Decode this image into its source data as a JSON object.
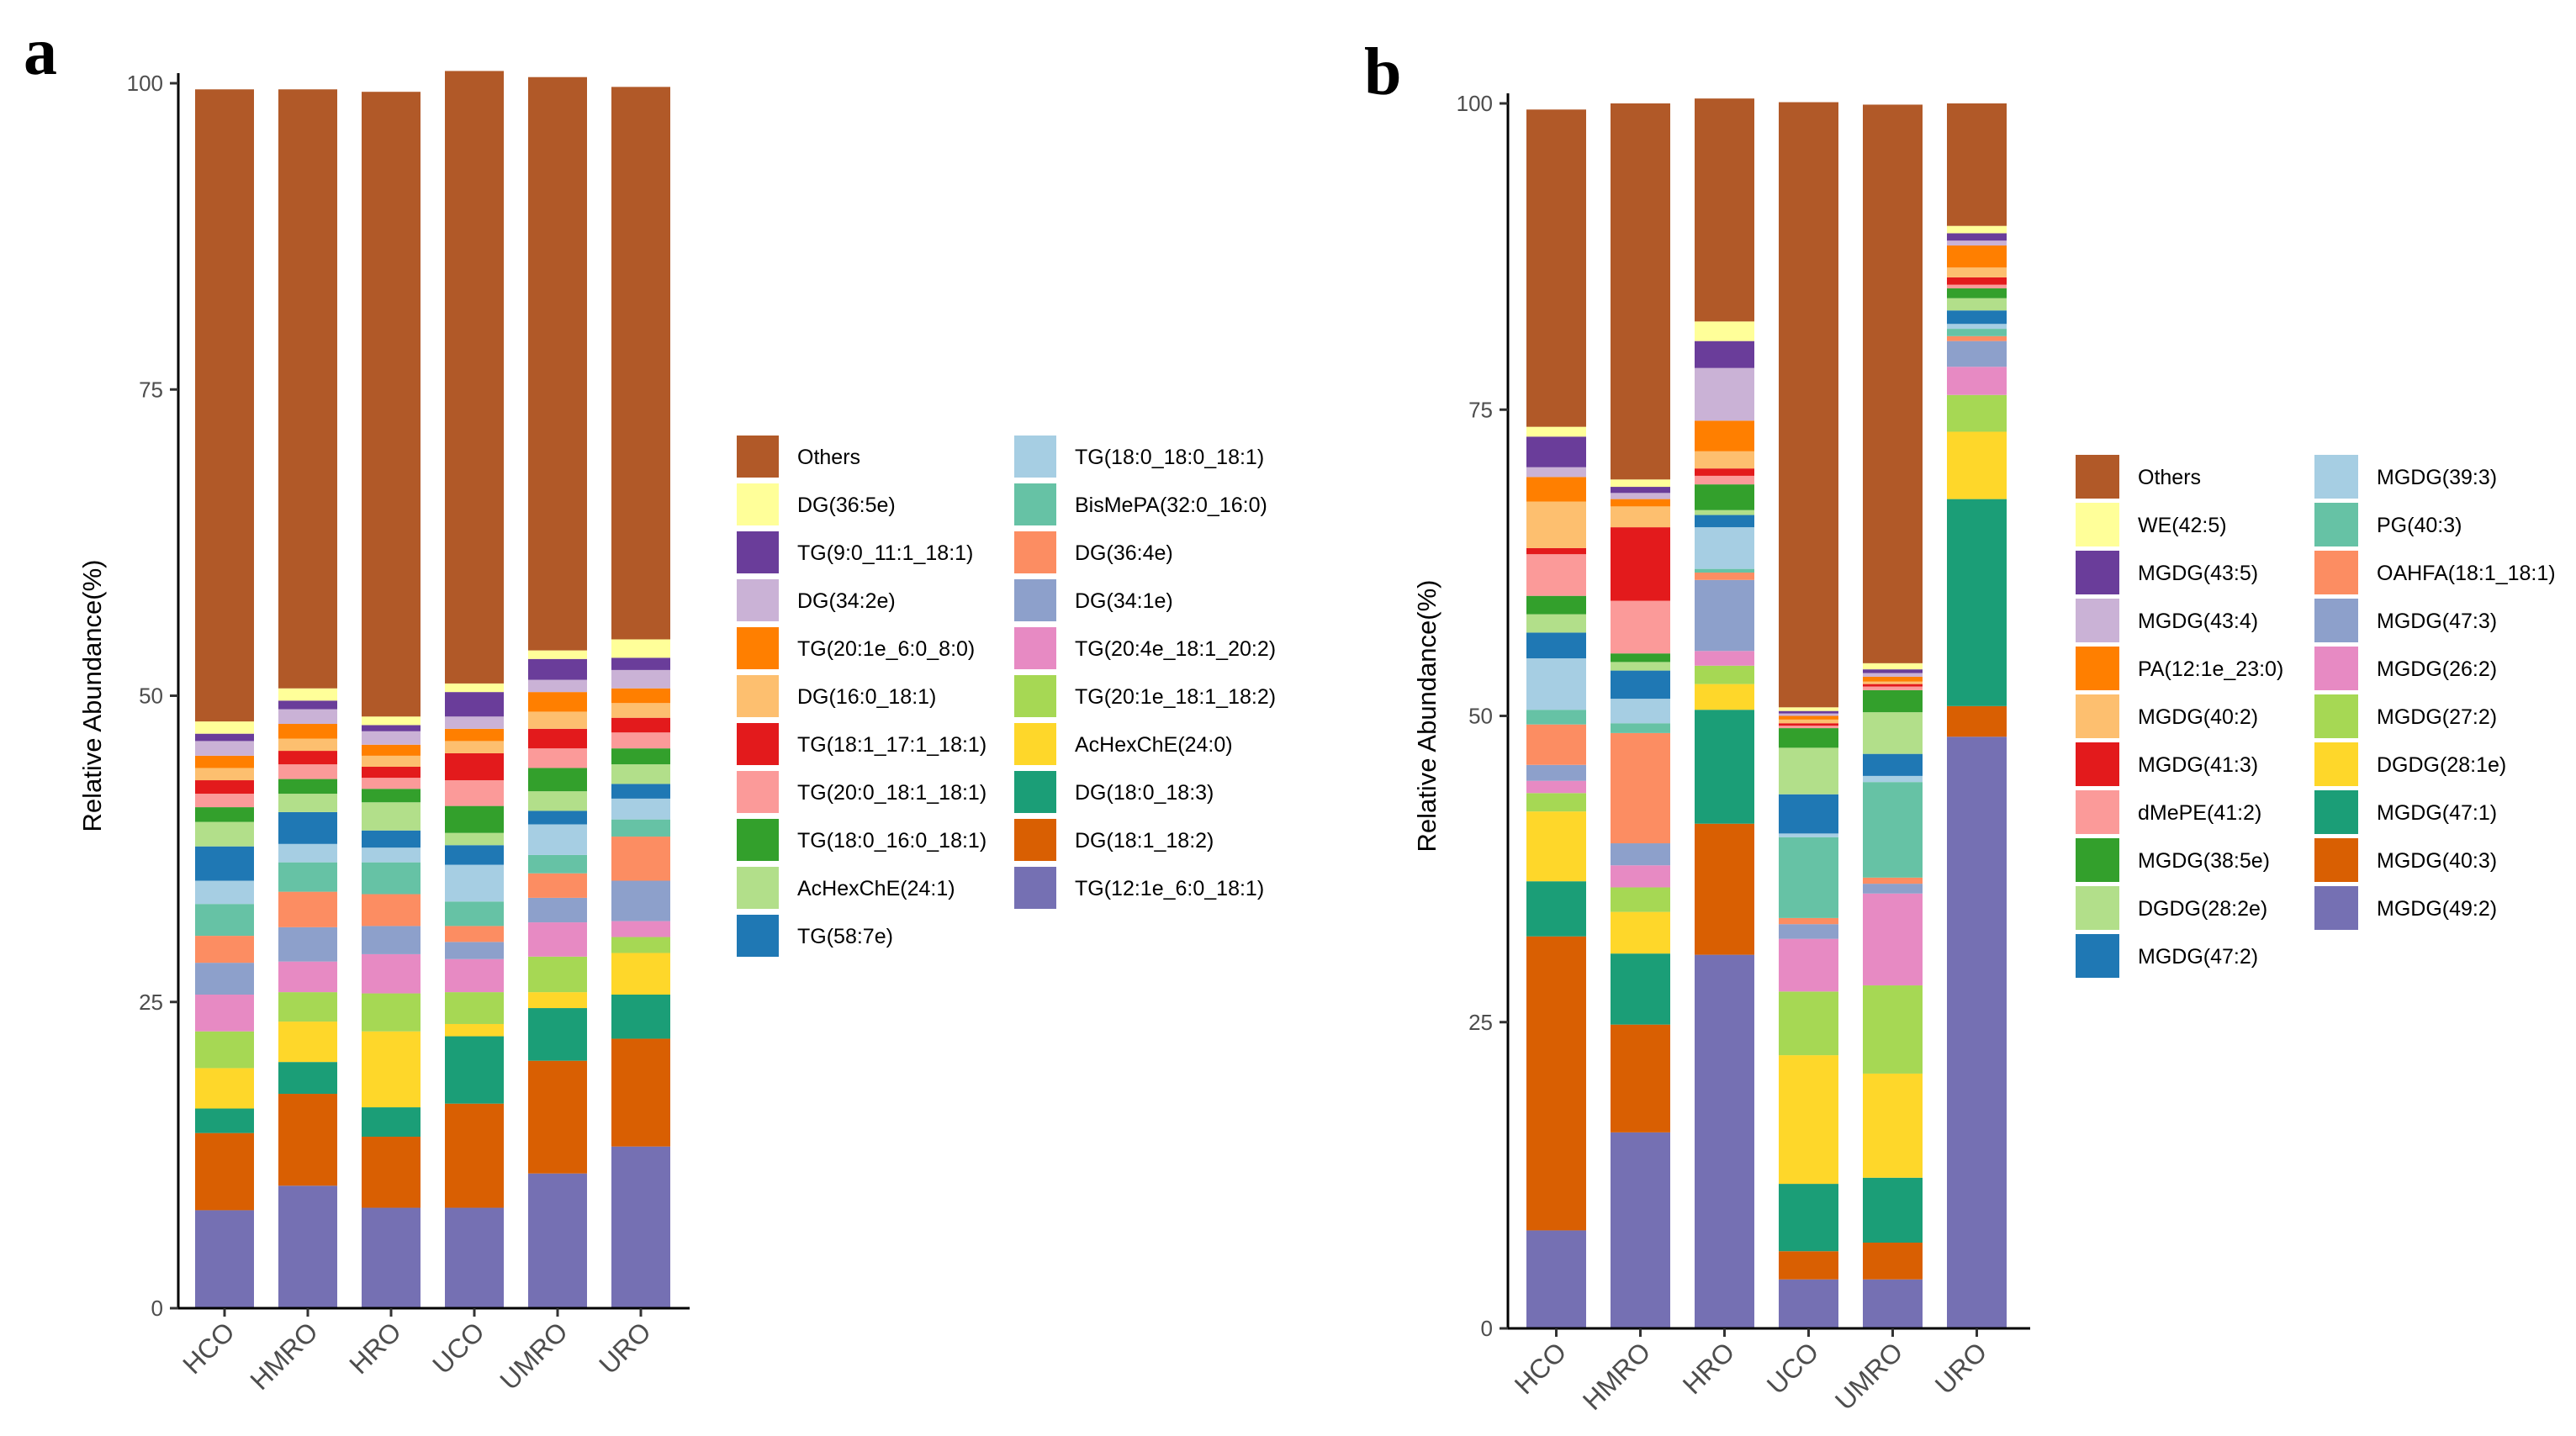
{
  "chart_data": [
    {
      "panel": "a",
      "type": "stacked-bar",
      "ylabel": "Relative Abundance(%)",
      "xlabel": "",
      "ylim": [
        0,
        100
      ],
      "yticks": [
        0,
        25,
        50,
        75,
        100
      ],
      "categories": [
        "HCO",
        "HMRO",
        "HRO",
        "UCO",
        "UMRO",
        "URO"
      ],
      "legend_position": "right",
      "series": [
        {
          "name": "TG(12:1e_6:0_18:1)",
          "color": "#7570b3",
          "values": [
            8.0,
            10.0,
            8.2,
            8.2,
            11.0,
            13.2
          ]
        },
        {
          "name": "DG(18:1_18:2)",
          "color": "#d95f02",
          "values": [
            6.3,
            7.5,
            5.8,
            8.5,
            9.2,
            8.8
          ]
        },
        {
          "name": "DG(18:0_18:3)",
          "color": "#1b9e77",
          "values": [
            2.0,
            2.6,
            2.4,
            5.5,
            4.3,
            3.6
          ]
        },
        {
          "name": "AcHexChE(24:0)",
          "color": "#fed72a",
          "values": [
            3.3,
            3.3,
            6.2,
            1.0,
            1.3,
            3.4
          ]
        },
        {
          "name": "TG(20:1e_18:1_18:2)",
          "color": "#a6d854",
          "values": [
            3.0,
            2.4,
            3.1,
            2.6,
            2.9,
            1.3
          ]
        },
        {
          "name": "TG(20:4e_18:1_20:2)",
          "color": "#e78ac3",
          "values": [
            3.0,
            2.5,
            3.2,
            2.7,
            2.8,
            1.3
          ]
        },
        {
          "name": "DG(34:1e)",
          "color": "#8da0cb",
          "values": [
            2.6,
            2.8,
            2.3,
            1.4,
            2.0,
            3.3
          ]
        },
        {
          "name": "DG(36:4e)",
          "color": "#fc8d62",
          "values": [
            2.2,
            2.9,
            2.6,
            1.3,
            2.0,
            3.6
          ]
        },
        {
          "name": "BisMePA(32:0_16:0)",
          "color": "#66c2a5",
          "values": [
            2.6,
            2.4,
            2.6,
            2.0,
            1.5,
            1.4
          ]
        },
        {
          "name": "TG(18:0_18:0_18:1)",
          "color": "#a6cee3",
          "values": [
            1.9,
            1.5,
            1.2,
            3.0,
            2.5,
            1.7
          ]
        },
        {
          "name": "TG(58:7e)",
          "color": "#1f78b4",
          "values": [
            2.8,
            2.6,
            1.4,
            1.6,
            1.1,
            1.2
          ]
        },
        {
          "name": "AcHexChE(24:1)",
          "color": "#b2df8a",
          "values": [
            2.0,
            1.5,
            2.3,
            1.0,
            1.6,
            1.6
          ]
        },
        {
          "name": "TG(18:0_16:0_18:1)",
          "color": "#33a02c",
          "values": [
            1.2,
            1.2,
            1.1,
            2.2,
            1.9,
            1.3
          ]
        },
        {
          "name": "TG(20:0_18:1_18:1)",
          "color": "#fb9a99",
          "values": [
            1.1,
            1.2,
            0.9,
            2.1,
            1.6,
            1.3
          ]
        },
        {
          "name": "TG(18:1_17:1_18:1)",
          "color": "#e31a1c",
          "values": [
            1.1,
            1.1,
            0.9,
            2.2,
            1.6,
            1.2
          ]
        },
        {
          "name": "DG(16:0_18:1)",
          "color": "#fdbf6f",
          "values": [
            1.0,
            1.0,
            0.9,
            1.0,
            1.4,
            1.2
          ]
        },
        {
          "name": "TG(20:1e_6:0_8:0)",
          "color": "#ff7f00",
          "values": [
            1.0,
            1.2,
            0.9,
            1.0,
            1.6,
            1.2
          ]
        },
        {
          "name": "DG(34:2e)",
          "color": "#cab2d6",
          "values": [
            1.2,
            1.2,
            1.1,
            1.0,
            1.0,
            1.5
          ]
        },
        {
          "name": "TG(9:0_11:1_18:1)",
          "color": "#6a3d9a",
          "values": [
            0.6,
            0.7,
            0.5,
            2.0,
            1.7,
            1.0
          ]
        },
        {
          "name": "DG(36:5e)",
          "color": "#ffff99",
          "values": [
            1.0,
            1.0,
            0.7,
            0.7,
            0.7,
            1.5
          ]
        },
        {
          "name": "Others",
          "color": "#b15928",
          "values": [
            51.6,
            48.9,
            51.0,
            50.0,
            46.8,
            45.1
          ]
        }
      ],
      "legend_columns": [
        [
          "Others",
          "DG(36:5e)",
          "TG(9:0_11:1_18:1)",
          "DG(34:2e)",
          "TG(20:1e_6:0_8:0)",
          "DG(16:0_18:1)",
          "TG(18:1_17:1_18:1)",
          "TG(20:0_18:1_18:1)",
          "TG(18:0_16:0_18:1)",
          "AcHexChE(24:1)",
          "TG(58:7e)"
        ],
        [
          "TG(18:0_18:0_18:1)",
          "BisMePA(32:0_16:0)",
          "DG(36:4e)",
          "DG(34:1e)",
          "TG(20:4e_18:1_20:2)",
          "TG(20:1e_18:1_18:2)",
          "AcHexChE(24:0)",
          "DG(18:0_18:3)",
          "DG(18:1_18:2)",
          "TG(12:1e_6:0_18:1)"
        ]
      ]
    },
    {
      "panel": "b",
      "type": "stacked-bar",
      "ylabel": "Relative Abundance(%)",
      "xlabel": "",
      "ylim": [
        0,
        100
      ],
      "yticks": [
        0,
        25,
        50,
        75,
        100
      ],
      "categories": [
        "HCO",
        "HMRO",
        "HRO",
        "UCO",
        "UMRO",
        "URO"
      ],
      "legend_position": "right",
      "series": [
        {
          "name": "MGDG(49:2)",
          "color": "#7570b3",
          "values": [
            8.0,
            16.0,
            30.5,
            4.0,
            4.0,
            48.3
          ]
        },
        {
          "name": "MGDG(40:3)",
          "color": "#d95f02",
          "values": [
            24.0,
            8.8,
            10.7,
            2.3,
            3.0,
            2.5
          ]
        },
        {
          "name": "MGDG(47:1)",
          "color": "#1b9e77",
          "values": [
            4.5,
            5.8,
            9.3,
            5.5,
            5.3,
            16.9
          ]
        },
        {
          "name": "DGDG(28:1e)",
          "color": "#fed72a",
          "values": [
            5.7,
            3.4,
            2.1,
            10.5,
            8.5,
            5.5
          ]
        },
        {
          "name": "MGDG(27:2)",
          "color": "#a6d854",
          "values": [
            1.5,
            2.0,
            1.5,
            5.2,
            7.2,
            3.0
          ]
        },
        {
          "name": "MGDG(26:2)",
          "color": "#e78ac3",
          "values": [
            1.0,
            1.8,
            1.2,
            4.3,
            7.5,
            2.3
          ]
        },
        {
          "name": "MGDG(47:3)",
          "color": "#8da0cb",
          "values": [
            1.3,
            1.8,
            5.8,
            1.2,
            0.8,
            2.1
          ]
        },
        {
          "name": "OAHFA(18:1_18:1)",
          "color": "#fc8d62",
          "values": [
            3.3,
            9.0,
            0.6,
            0.5,
            0.5,
            0.4
          ]
        },
        {
          "name": "PG(40:3)",
          "color": "#66c2a5",
          "values": [
            1.2,
            0.8,
            0.3,
            6.6,
            7.8,
            0.6
          ]
        },
        {
          "name": "MGDG(39:3)",
          "color": "#a6cee3",
          "values": [
            4.2,
            2.0,
            3.4,
            0.3,
            0.5,
            0.4
          ]
        },
        {
          "name": "MGDG(47:2)",
          "color": "#1f78b4",
          "values": [
            2.1,
            2.3,
            1.0,
            3.2,
            1.8,
            1.1
          ]
        },
        {
          "name": "DGDG(28:2e)",
          "color": "#b2df8a",
          "values": [
            1.5,
            0.7,
            0.4,
            3.8,
            3.4,
            1.0
          ]
        },
        {
          "name": "MGDG(38:5e)",
          "color": "#33a02c",
          "values": [
            1.5,
            0.7,
            2.1,
            1.6,
            1.8,
            0.8
          ]
        },
        {
          "name": "dMePE(41:2)",
          "color": "#fb9a99",
          "values": [
            3.4,
            4.3,
            0.7,
            0.2,
            0.3,
            0.3
          ]
        },
        {
          "name": "MGDG(41:3)",
          "color": "#e31a1c",
          "values": [
            0.5,
            6.0,
            0.6,
            0.2,
            0.2,
            0.6
          ]
        },
        {
          "name": "MGDG(40:2)",
          "color": "#fdbf6f",
          "values": [
            3.8,
            1.7,
            1.4,
            0.3,
            0.2,
            0.8
          ]
        },
        {
          "name": "PA(12:1e_23:0)",
          "color": "#ff7f00",
          "values": [
            2.0,
            0.6,
            2.5,
            0.3,
            0.4,
            1.8
          ]
        },
        {
          "name": "MGDG(43:4)",
          "color": "#cab2d6",
          "values": [
            0.8,
            0.5,
            4.3,
            0.2,
            0.3,
            0.4
          ]
        },
        {
          "name": "MGDG(43:5)",
          "color": "#6a3d9a",
          "values": [
            2.5,
            0.5,
            2.2,
            0.2,
            0.3,
            0.6
          ]
        },
        {
          "name": "WE(42:5)",
          "color": "#ffff99",
          "values": [
            0.8,
            0.6,
            1.6,
            0.3,
            0.5,
            0.6
          ]
        },
        {
          "name": "Others",
          "color": "#b15928",
          "values": [
            25.9,
            30.7,
            18.2,
            49.4,
            45.6,
            10.0
          ]
        }
      ],
      "legend_columns": [
        [
          "Others",
          "WE(42:5)",
          "MGDG(43:5)",
          "MGDG(43:4)",
          "PA(12:1e_23:0)",
          "MGDG(40:2)",
          "MGDG(41:3)",
          "dMePE(41:2)",
          "MGDG(38:5e)",
          "DGDG(28:2e)",
          "MGDG(47:2)"
        ],
        [
          "MGDG(39:3)",
          "PG(40:3)",
          "OAHFA(18:1_18:1)",
          "MGDG(47:3)",
          "MGDG(26:2)",
          "MGDG(27:2)",
          "DGDG(28:1e)",
          "MGDG(47:1)",
          "MGDG(40:3)",
          "MGDG(49:2)"
        ]
      ]
    }
  ]
}
